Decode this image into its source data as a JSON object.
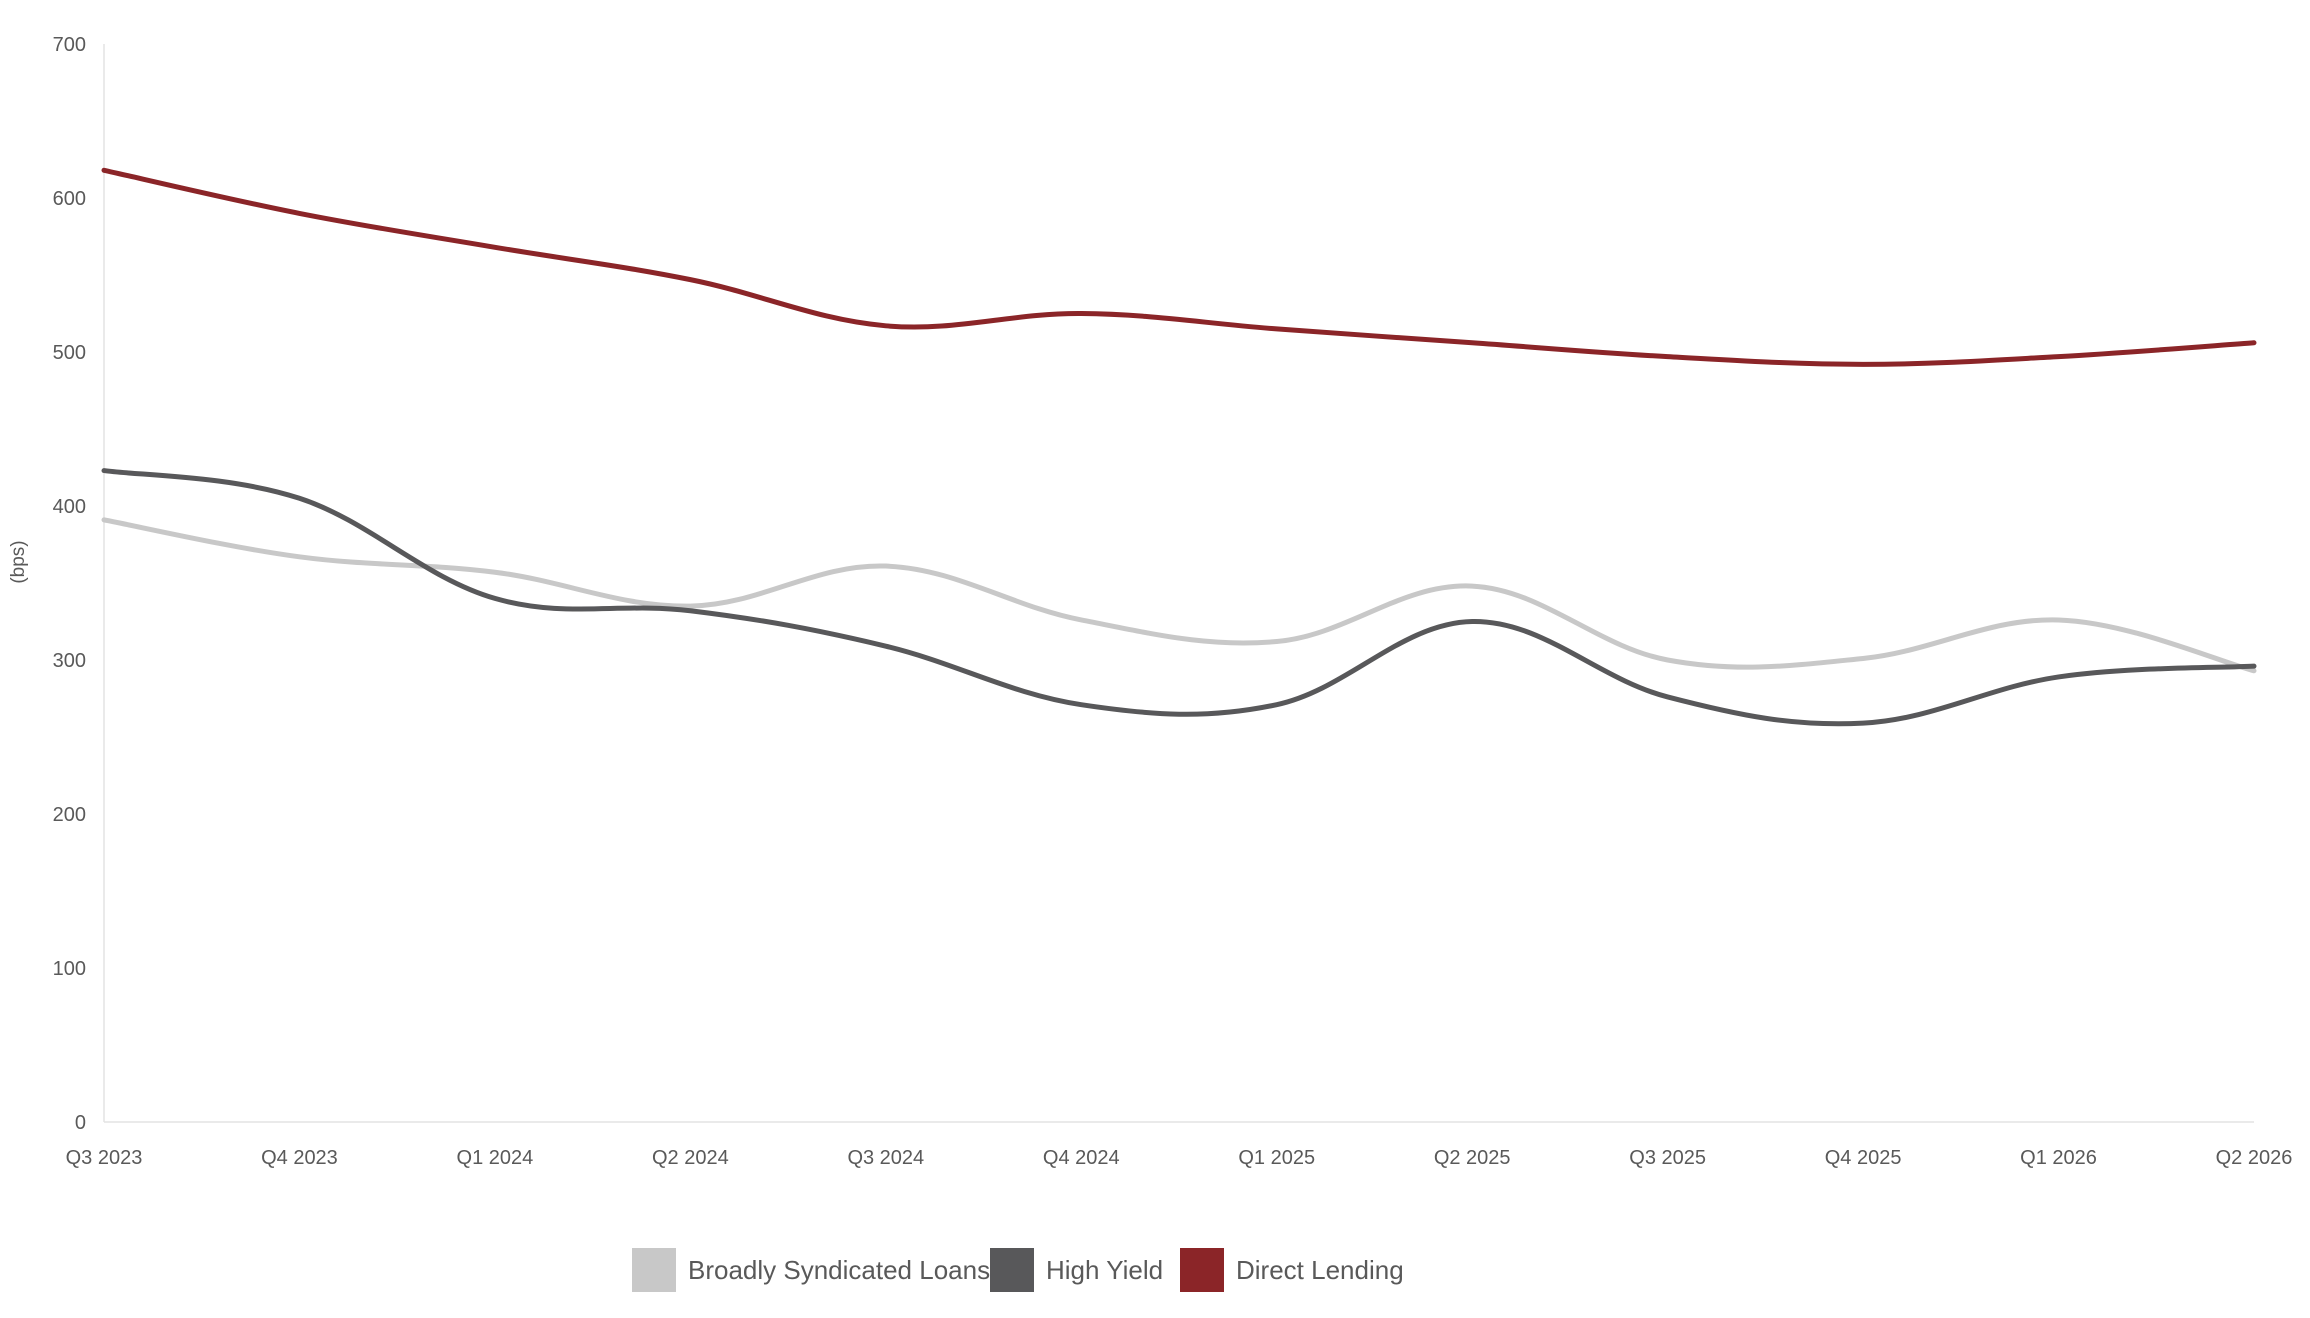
{
  "chart_data": {
    "type": "line",
    "ylabel": "(bps)",
    "xlabel": "",
    "ylim": [
      0,
      700
    ],
    "yticks": [
      0,
      100,
      200,
      300,
      400,
      500,
      600,
      700
    ],
    "categories": [
      "Q3 2023",
      "Q4 2023",
      "Q1 2024",
      "Q2 2024",
      "Q3 2024",
      "Q4 2024",
      "Q1 2025",
      "Q2 2025",
      "Q3 2025",
      "Q4 2025",
      "Q1 2026",
      "Q2 2026"
    ],
    "grid": false,
    "legend_position": "bottom",
    "series": [
      {
        "name": "Broadly Syndicated Loans",
        "color": "#C8C8C8",
        "values": [
          391,
          367,
          357,
          335,
          361,
          326,
          312,
          348,
          300,
          301,
          326,
          293
        ]
      },
      {
        "name": "High Yield",
        "color": "#58585A",
        "values": [
          423,
          405,
          340,
          332,
          309,
          271,
          271,
          325,
          276,
          259,
          289,
          296
        ]
      },
      {
        "name": "Direct Lending",
        "color": "#8B2528",
        "values": [
          618,
          590,
          568,
          547,
          517,
          525,
          515,
          506,
          497,
          492,
          497,
          506
        ]
      }
    ]
  }
}
